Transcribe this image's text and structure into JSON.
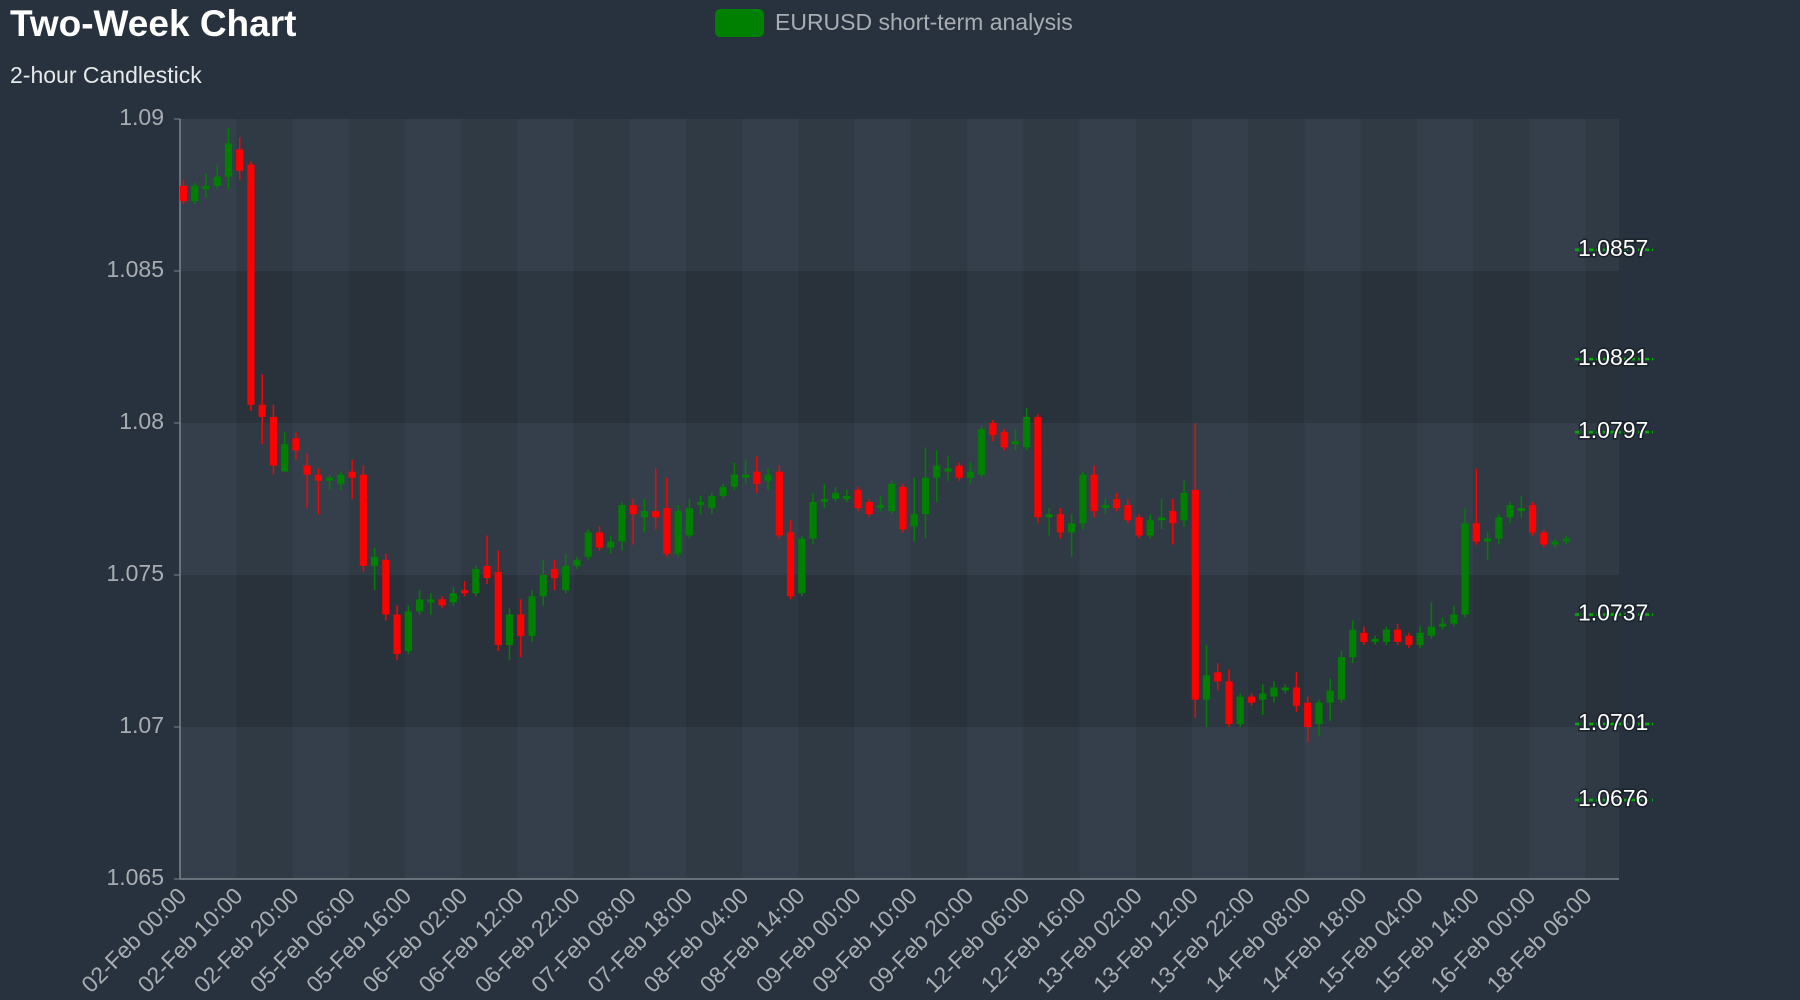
{
  "chart_data": {
    "type": "candlestick",
    "title": "Two-Week Chart",
    "subtitle": "2-hour Candlestick",
    "series_name": "EURUSD short-term analysis",
    "legend": "top",
    "up_color": "#008000",
    "down_color": "#ff0000",
    "level_color": "#00b000",
    "grid": true,
    "ylim": [
      1.065,
      1.09
    ],
    "yticks": [
      1.065,
      1.07,
      1.075,
      1.08,
      1.085,
      1.09
    ],
    "levels": [
      1.0857,
      1.0821,
      1.0797,
      1.0737,
      1.0701,
      1.0676
    ],
    "categories": [
      "02-Feb 00:00",
      null,
      null,
      null,
      null,
      "02-Feb 10:00",
      null,
      null,
      null,
      null,
      "02-Feb 20:00",
      null,
      null,
      null,
      null,
      "05-Feb 06:00",
      null,
      null,
      null,
      null,
      "05-Feb 16:00",
      null,
      null,
      null,
      null,
      "06-Feb 02:00",
      null,
      null,
      null,
      null,
      "06-Feb 12:00",
      null,
      null,
      null,
      null,
      "06-Feb 22:00",
      null,
      null,
      null,
      null,
      "07-Feb 08:00",
      null,
      null,
      null,
      null,
      "07-Feb 18:00",
      null,
      null,
      null,
      null,
      "08-Feb 04:00",
      null,
      null,
      null,
      null,
      "08-Feb 14:00",
      null,
      null,
      null,
      null,
      "09-Feb 00:00",
      null,
      null,
      null,
      null,
      "09-Feb 10:00",
      null,
      null,
      null,
      null,
      "09-Feb 20:00",
      null,
      null,
      null,
      null,
      "12-Feb 06:00",
      null,
      null,
      null,
      null,
      "12-Feb 16:00",
      null,
      null,
      null,
      null,
      "13-Feb 02:00",
      null,
      null,
      null,
      null,
      "13-Feb 12:00",
      null,
      null,
      null,
      null,
      "13-Feb 22:00",
      null,
      null,
      null,
      null,
      "14-Feb 08:00",
      null,
      null,
      null,
      null,
      "14-Feb 18:00",
      null,
      null,
      null,
      null,
      "15-Feb 04:00",
      null,
      null,
      null,
      null,
      "15-Feb 14:00",
      null,
      null,
      null,
      null,
      "16-Feb 00:00",
      null,
      null,
      null,
      null,
      "18-Feb 06:00"
    ],
    "open": [
      1.0878,
      1.0873,
      1.0877,
      1.0878,
      1.0881,
      1.089,
      1.0885,
      1.0806,
      1.0802,
      1.0784,
      1.0795,
      1.0786,
      1.0783,
      1.0781,
      1.078,
      1.0784,
      1.0783,
      1.0753,
      1.0755,
      1.0737,
      1.0725,
      1.0738,
      1.0741,
      1.0742,
      1.0741,
      1.0745,
      1.0744,
      1.0753,
      1.0751,
      1.0727,
      1.0737,
      1.073,
      1.0743,
      1.0752,
      1.0745,
      1.0753,
      1.0756,
      1.0764,
      1.0759,
      1.0761,
      1.0773,
      1.0769,
      1.0771,
      1.0772,
      1.0757,
      1.0763,
      1.0773,
      1.0772,
      1.0776,
      1.0779,
      1.0782,
      1.0784,
      1.0781,
      1.0784,
      1.0764,
      1.0744,
      1.0762,
      1.0774,
      1.0775,
      1.0775,
      1.0778,
      1.0774,
      1.0772,
      1.0771,
      1.0779,
      1.0766,
      1.077,
      1.0782,
      1.0784,
      1.0786,
      1.0782,
      1.0783,
      1.08,
      1.0797,
      1.0793,
      1.0792,
      1.0802,
      1.0769,
      1.077,
      1.0764,
      1.0767,
      1.0783,
      1.0772,
      1.0775,
      1.0773,
      1.0769,
      1.0763,
      1.0768,
      1.0771,
      1.0768,
      1.0778,
      1.0709,
      1.0718,
      1.0715,
      1.0701,
      1.071,
      1.0709,
      1.071,
      1.0712,
      1.0713,
      1.0708,
      1.0701,
      1.0708,
      1.0709,
      1.0723,
      1.0731,
      1.0728,
      1.0728,
      1.0732,
      1.073,
      1.0727,
      1.073,
      1.0733,
      1.0734,
      1.0737,
      1.0767,
      1.0761,
      1.0762,
      1.0769,
      1.0771,
      1.0773,
      1.0764,
      1.076,
      1.0761,
      null,
      null
    ],
    "high": [
      1.088,
      1.0879,
      1.0882,
      1.0885,
      1.0897,
      1.0894,
      1.0886,
      1.0816,
      1.0806,
      1.0797,
      1.0797,
      1.079,
      1.0785,
      1.0783,
      1.0784,
      1.0788,
      1.0786,
      1.0759,
      1.0757,
      1.074,
      1.074,
      1.0745,
      1.0744,
      1.0743,
      1.0746,
      1.0748,
      1.0753,
      1.0763,
      1.0758,
      1.0739,
      1.0742,
      1.0745,
      1.0755,
      1.0755,
      1.0757,
      1.0756,
      1.0765,
      1.0766,
      1.0763,
      1.0774,
      1.0775,
      1.0775,
      1.0785,
      1.0782,
      1.0773,
      1.0775,
      1.0776,
      1.0777,
      1.078,
      1.0787,
      1.0788,
      1.0789,
      1.0785,
      1.0786,
      1.0768,
      1.0763,
      1.0777,
      1.078,
      1.0779,
      1.0778,
      1.0779,
      1.0775,
      1.0776,
      1.0781,
      1.078,
      1.0782,
      1.0792,
      1.0791,
      1.0789,
      1.0787,
      1.0787,
      1.0799,
      1.0801,
      1.0798,
      1.0798,
      1.0805,
      1.0803,
      1.0772,
      1.0772,
      1.077,
      1.0784,
      1.0786,
      1.0775,
      1.0777,
      1.0775,
      1.077,
      1.077,
      1.0775,
      1.0775,
      1.0781,
      1.08,
      1.0727,
      1.0721,
      1.0719,
      1.0711,
      1.0711,
      1.0714,
      1.0715,
      1.0714,
      1.0718,
      1.071,
      1.0709,
      1.0716,
      1.0725,
      1.0735,
      1.0733,
      1.073,
      1.0733,
      1.0734,
      1.0731,
      1.0733,
      1.0741,
      1.0736,
      1.074,
      1.0772,
      1.0785,
      1.0764,
      1.077,
      1.0774,
      1.0776,
      1.0774,
      1.0765,
      1.0762,
      1.0763,
      null,
      null
    ],
    "low": [
      1.0872,
      1.0872,
      1.0874,
      1.0877,
      1.0877,
      1.088,
      1.0804,
      1.0793,
      1.0783,
      1.0785,
      1.0788,
      1.0772,
      1.077,
      1.0778,
      1.0778,
      1.0775,
      1.0751,
      1.0745,
      1.0735,
      1.0722,
      1.0724,
      1.0737,
      1.0737,
      1.0739,
      1.074,
      1.0743,
      1.0743,
      1.0747,
      1.0725,
      1.0722,
      1.0723,
      1.0728,
      1.074,
      1.0745,
      1.0744,
      1.0752,
      1.0755,
      1.0758,
      1.0757,
      1.0758,
      1.076,
      1.0764,
      1.0765,
      1.0756,
      1.0756,
      1.0762,
      1.077,
      1.077,
      1.0775,
      1.0778,
      1.078,
      1.0777,
      1.0778,
      1.0762,
      1.0742,
      1.0743,
      1.076,
      1.0772,
      1.0774,
      1.0774,
      1.0771,
      1.0769,
      1.0771,
      1.077,
      1.0764,
      1.0761,
      1.0762,
      1.0774,
      1.0781,
      1.0781,
      1.078,
      1.0782,
      1.0794,
      1.0791,
      1.0791,
      1.0791,
      1.0767,
      1.0763,
      1.0762,
      1.0756,
      1.0765,
      1.0769,
      1.077,
      1.0771,
      1.0767,
      1.0762,
      1.0762,
      1.0765,
      1.076,
      1.0766,
      1.0703,
      1.07,
      1.0712,
      1.07,
      1.07,
      1.0707,
      1.0704,
      1.0708,
      1.0711,
      1.0705,
      1.0695,
      1.0697,
      1.0702,
      1.0708,
      1.0721,
      1.0727,
      1.0727,
      1.0727,
      1.0727,
      1.0726,
      1.0726,
      1.0729,
      1.0732,
      1.0733,
      1.0736,
      1.076,
      1.0755,
      1.076,
      1.0767,
      1.0769,
      1.0763,
      1.0759,
      1.0759,
      1.076,
      null,
      null
    ],
    "close": [
      1.0873,
      1.0878,
      1.0878,
      1.0881,
      1.0892,
      1.0883,
      1.0806,
      1.0802,
      1.0786,
      1.0793,
      1.0791,
      1.0783,
      1.0781,
      1.0782,
      1.0783,
      1.0782,
      1.0753,
      1.0756,
      1.0737,
      1.0724,
      1.0738,
      1.0742,
      1.0742,
      1.074,
      1.0744,
      1.0744,
      1.0752,
      1.0749,
      1.0727,
      1.0737,
      1.073,
      1.0743,
      1.075,
      1.0749,
      1.0753,
      1.0755,
      1.0764,
      1.0759,
      1.0761,
      1.0773,
      1.077,
      1.0771,
      1.0769,
      1.0757,
      1.0771,
      1.0772,
      1.0774,
      1.0776,
      1.0779,
      1.0783,
      1.0783,
      1.078,
      1.0783,
      1.0763,
      1.0743,
      1.0762,
      1.0774,
      1.0775,
      1.0777,
      1.0776,
      1.0772,
      1.077,
      1.0773,
      1.078,
      1.0765,
      1.077,
      1.0782,
      1.0786,
      1.0785,
      1.0782,
      1.0784,
      1.0798,
      1.0796,
      1.0792,
      1.0794,
      1.0802,
      1.0769,
      1.077,
      1.0764,
      1.0767,
      1.0783,
      1.0771,
      1.0773,
      1.0772,
      1.0768,
      1.0763,
      1.0768,
      1.0769,
      1.0767,
      1.0777,
      1.0709,
      1.0717,
      1.0715,
      1.0701,
      1.071,
      1.0708,
      1.0711,
      1.0713,
      1.0713,
      1.0707,
      1.07,
      1.0708,
      1.0712,
      1.0723,
      1.0732,
      1.0728,
      1.0729,
      1.0732,
      1.0728,
      1.0727,
      1.0731,
      1.0733,
      1.0734,
      1.0737,
      1.0767,
      1.0761,
      1.0762,
      1.0769,
      1.0773,
      1.0772,
      1.0764,
      1.076,
      1.0761,
      1.0762,
      null,
      null
    ]
  }
}
